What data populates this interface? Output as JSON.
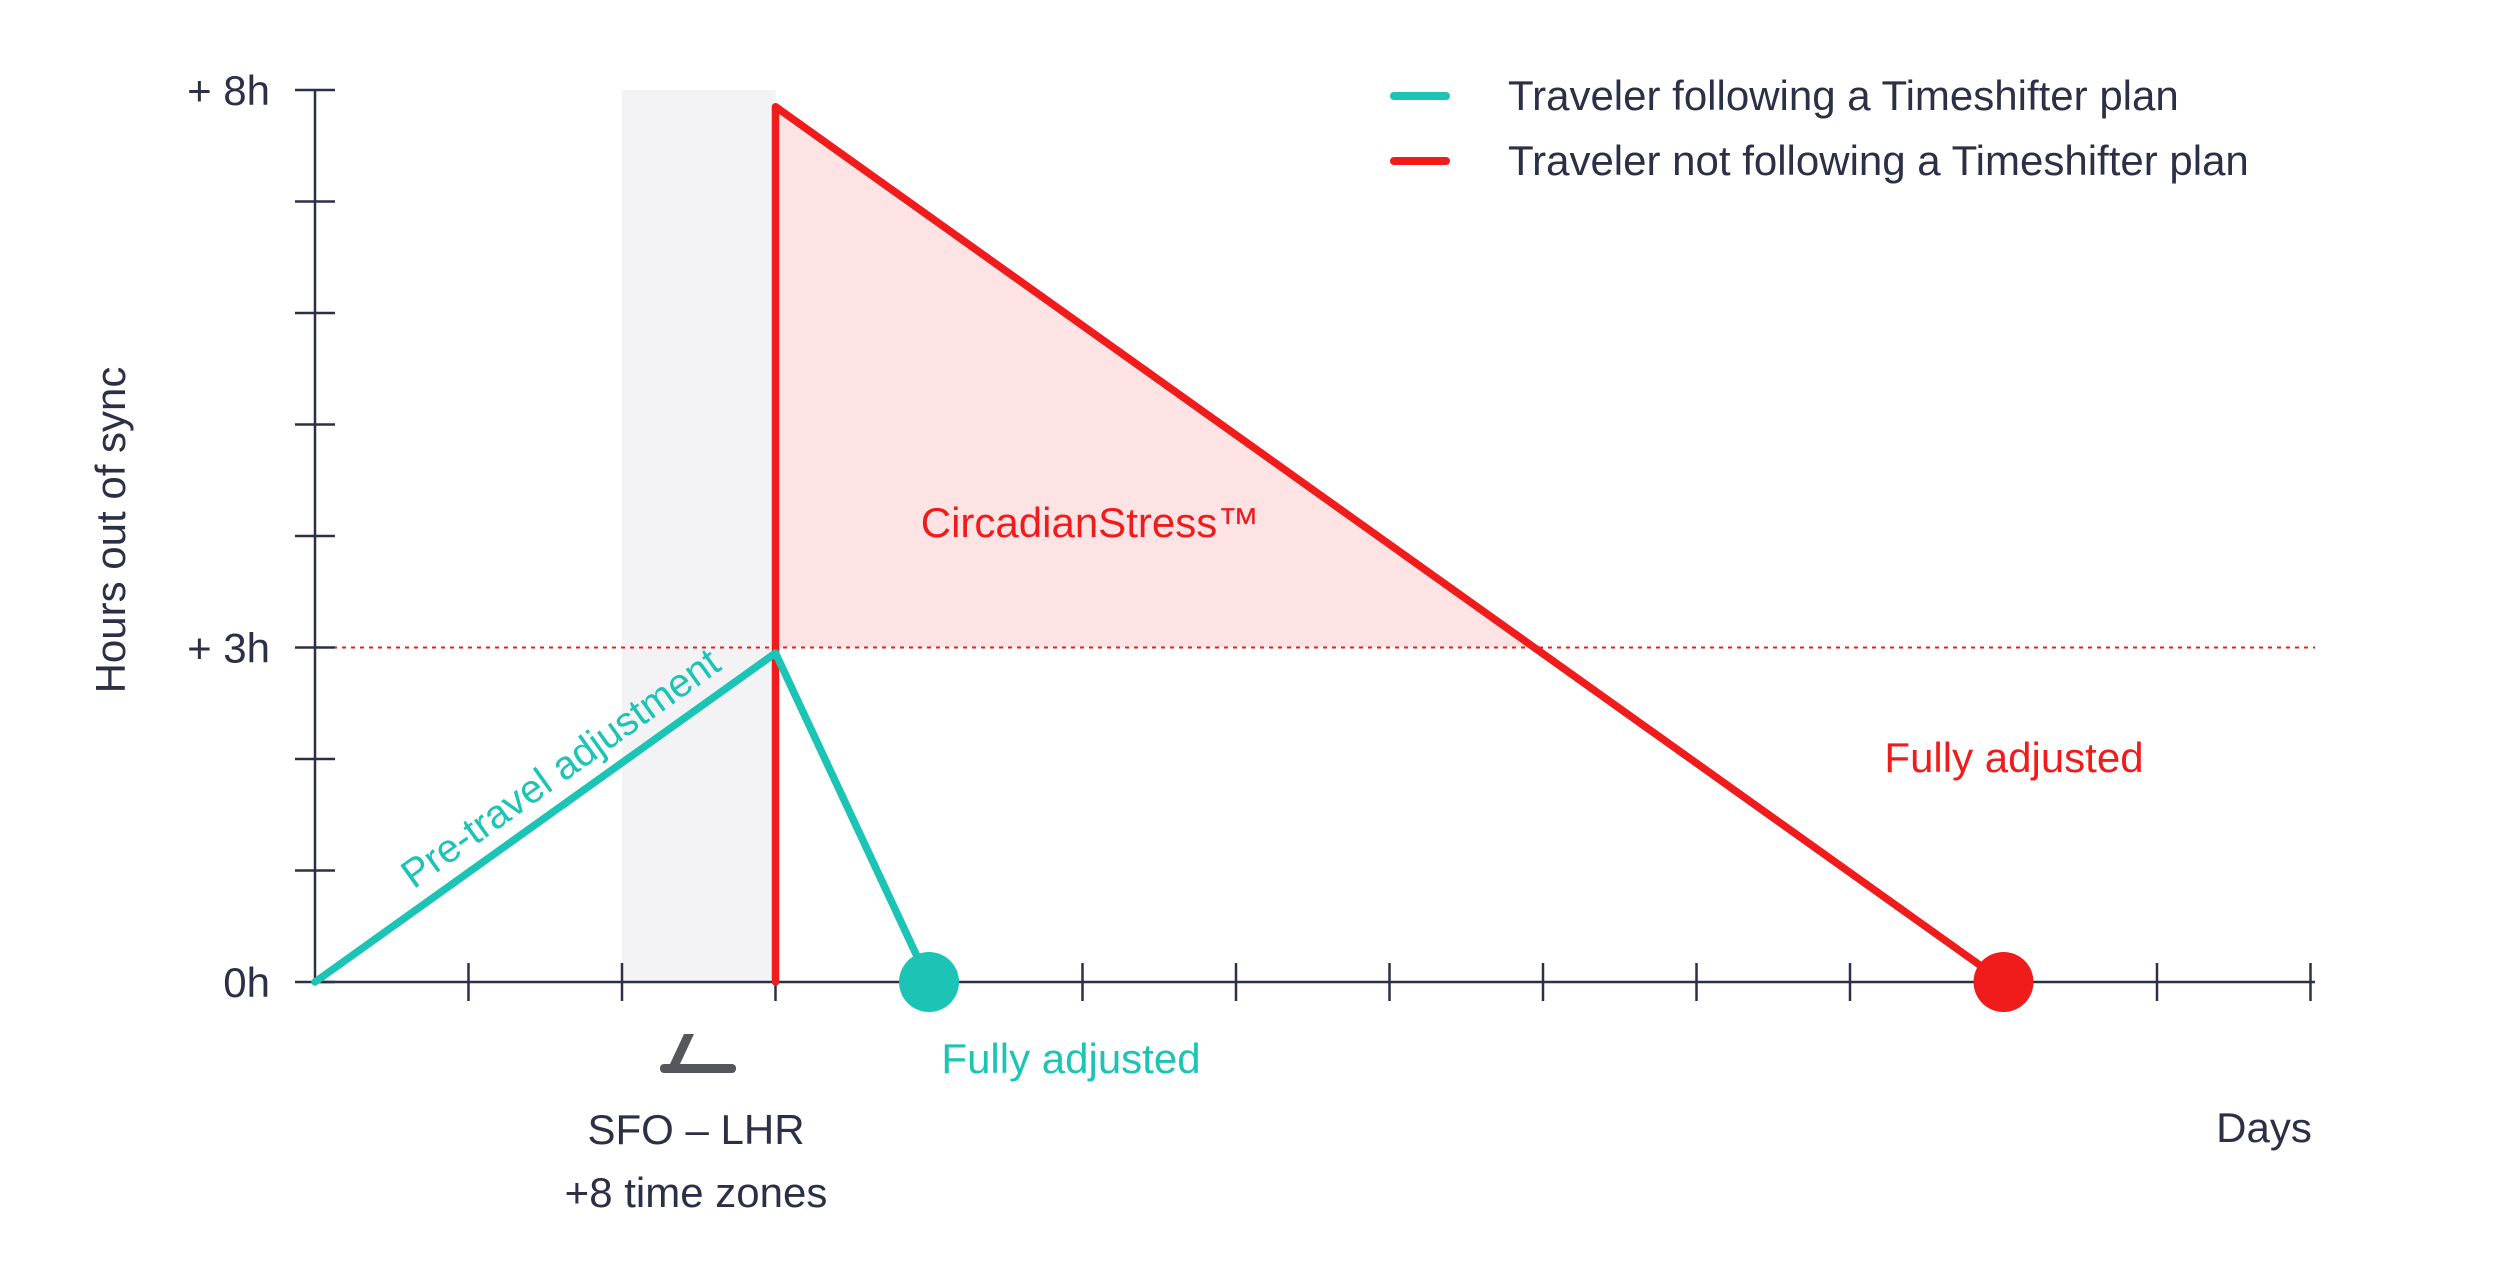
{
  "chart_data": {
    "type": "line",
    "ylabel": "Hours out of sync",
    "xlabel": "Days",
    "y_ticks": [
      {
        "value": 0,
        "label": "0h"
      },
      {
        "value": 3,
        "label": "+ 3h"
      },
      {
        "value": 8,
        "label": "+ 8h"
      }
    ],
    "ylim": [
      0,
      8
    ],
    "xlim": [
      0,
      13
    ],
    "threshold": 3,
    "flight_band": [
      2,
      3
    ],
    "series": [
      {
        "name": "Traveler following a Timeshifter plan",
        "color": "#1bc4b4",
        "points": [
          [
            0,
            0
          ],
          [
            3,
            2.95
          ],
          [
            4,
            0
          ]
        ],
        "end_label": "Fully adjusted"
      },
      {
        "name": "Traveler not following a Timeshifter plan",
        "color": "#f01c1c",
        "points": [
          [
            3,
            0
          ],
          [
            3,
            7.85
          ],
          [
            11,
            0
          ]
        ],
        "end_label": "Fully adjusted"
      }
    ],
    "annotations": {
      "pretravel": "Pre-travel adjustment",
      "stress": "CircadianStress™",
      "flight_line1": "SFO – LHR",
      "flight_line2": "+8 time zones"
    }
  },
  "colors": {
    "axis": "#2b3046",
    "text": "#2b3046",
    "teal": "#1bc4b4",
    "red": "#f01c1c",
    "stress_fill": "#fde3e3",
    "band": "#f3f3f5",
    "plane": "#55575c"
  },
  "icon": "airplane-landing-icon"
}
